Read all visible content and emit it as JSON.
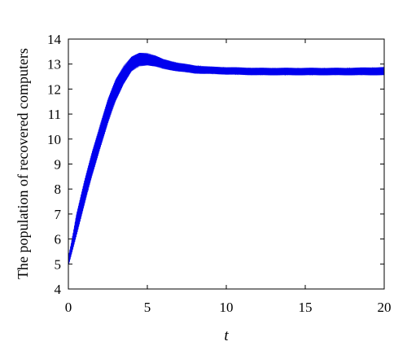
{
  "chart_data": {
    "type": "line",
    "title": "",
    "xlabel": "t",
    "ylabel": "The population of recovered computers",
    "xlim": [
      0,
      20
    ],
    "ylim": [
      4,
      14
    ],
    "x_ticks": [
      0,
      5,
      10,
      15,
      20
    ],
    "y_ticks": [
      4,
      5,
      6,
      7,
      8,
      9,
      10,
      11,
      12,
      13,
      14
    ],
    "x_tick_labels": [
      "0",
      "5",
      "10",
      "15",
      "20"
    ],
    "y_tick_labels": [
      "4",
      "5",
      "6",
      "7",
      "8",
      "9",
      "10",
      "11",
      "12",
      "13",
      "14"
    ],
    "grid": false,
    "legend": "none",
    "series": [
      {
        "color": "#0000ee",
        "envelope": {
          "x": [
            0,
            0.25,
            0.5,
            1.0,
            1.5,
            2.0,
            2.5,
            3.0,
            3.5,
            4.0,
            4.5,
            5.0,
            5.5,
            6.0,
            7.0,
            8.0,
            9.0,
            10.0,
            12.0,
            15.0,
            17.5,
            20.0
          ],
          "lower": [
            4.9,
            5.5,
            6.1,
            7.3,
            8.5,
            9.6,
            10.6,
            11.5,
            12.2,
            12.7,
            12.9,
            12.95,
            12.9,
            12.8,
            12.7,
            12.62,
            12.6,
            12.58,
            12.55,
            12.55,
            12.55,
            12.55
          ],
          "upper": [
            5.3,
            6.1,
            7.0,
            8.3,
            9.5,
            10.6,
            11.6,
            12.4,
            12.95,
            13.3,
            13.45,
            13.45,
            13.35,
            13.2,
            13.05,
            12.95,
            12.9,
            12.88,
            12.85,
            12.85,
            12.85,
            12.88
          ]
        }
      }
    ]
  }
}
